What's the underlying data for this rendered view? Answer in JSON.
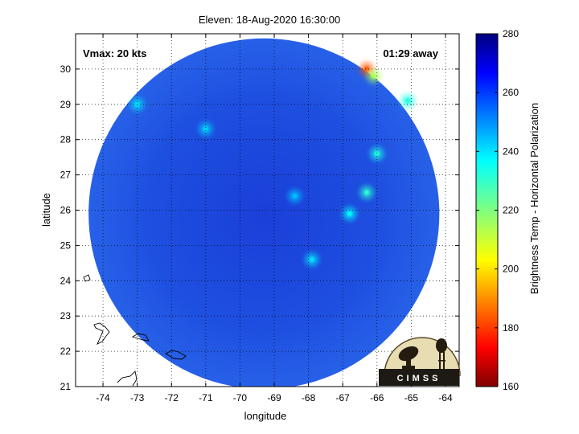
{
  "title": "Eleven: 18-Aug-2020 16:30:00",
  "overlay": {
    "vmax": "Vmax: 20 kts",
    "time_away": "01:29 away"
  },
  "x_axis": {
    "label": "longitude",
    "range": [
      -74.8,
      -63.6
    ],
    "ticks": [
      -74,
      -73,
      -72,
      -71,
      -70,
      -69,
      -68,
      -67,
      -66,
      -65,
      -64
    ],
    "tick_labels": [
      "-74",
      "-73",
      "-72",
      "-71",
      "-70",
      "-69",
      "-68",
      "-67",
      "-66",
      "-65",
      "-64"
    ]
  },
  "y_axis": {
    "label": "latitude",
    "range": [
      21,
      31
    ],
    "ticks": [
      21,
      22,
      23,
      24,
      25,
      26,
      27,
      28,
      29,
      30
    ],
    "tick_labels": [
      "21",
      "22",
      "23",
      "24",
      "25",
      "26",
      "27",
      "28",
      "29",
      "30"
    ]
  },
  "grid": "dotted",
  "colorbar": {
    "label": "Brightness Temp - Horizontal Polarization",
    "range": [
      160,
      280
    ],
    "ticks": [
      160,
      180,
      200,
      220,
      240,
      260,
      280
    ],
    "tick_labels": [
      "160",
      "180",
      "200",
      "220",
      "240",
      "260",
      "280"
    ],
    "colormap": "jet"
  },
  "swath": {
    "center_lon": -69.3,
    "center_lat": 25.9,
    "background_temp": 255
  },
  "cool_features": [
    {
      "lon": -66.3,
      "lat": 30.0,
      "temp": 185
    },
    {
      "lon": -66.1,
      "lat": 29.8,
      "temp": 215
    },
    {
      "lon": -65.1,
      "lat": 29.1,
      "temp": 232
    },
    {
      "lon": -66.0,
      "lat": 27.6,
      "temp": 232
    },
    {
      "lon": -66.3,
      "lat": 26.5,
      "temp": 230
    },
    {
      "lon": -66.8,
      "lat": 25.9,
      "temp": 235
    },
    {
      "lon": -67.9,
      "lat": 24.6,
      "temp": 238
    },
    {
      "lon": -68.4,
      "lat": 26.4,
      "temp": 242
    },
    {
      "lon": -73.0,
      "lat": 29.0,
      "temp": 238
    },
    {
      "lon": -71.0,
      "lat": 28.3,
      "temp": 240
    }
  ],
  "logo": {
    "text": "CIMSS"
  }
}
